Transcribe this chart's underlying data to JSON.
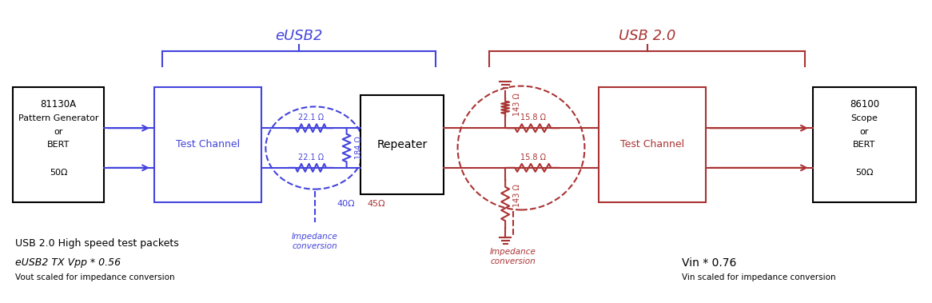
{
  "blue": "#4444dd",
  "dark_red": "#aa3333",
  "black": "#000000",
  "bg": "#ffffff",
  "eusb2_label": "eUSB2",
  "usb20_label": "USB 2.0",
  "impedance_conv_label": "Impedance\nconversion",
  "bottom_left_1": "USB 2.0 High speed test packets",
  "bottom_left_2": "eUSB2 TX Vpp * 0.56",
  "bottom_left_3": "Vout scaled for impedance conversion",
  "bottom_right_1": "Vin * 0.76",
  "bottom_right_2": "Vin scaled for impedance conversion",
  "r22_1_top": "22.1 Ω",
  "r22_1_bot": "22.1 Ω",
  "r184": "184 Ω",
  "r158_top": "15.8 Ω",
  "r158_bot": "15.8 Ω",
  "r143_top": "143 Ω",
  "r143_bot": "143 Ω",
  "ohm40": "40Ω",
  "ohm45": "45Ω"
}
